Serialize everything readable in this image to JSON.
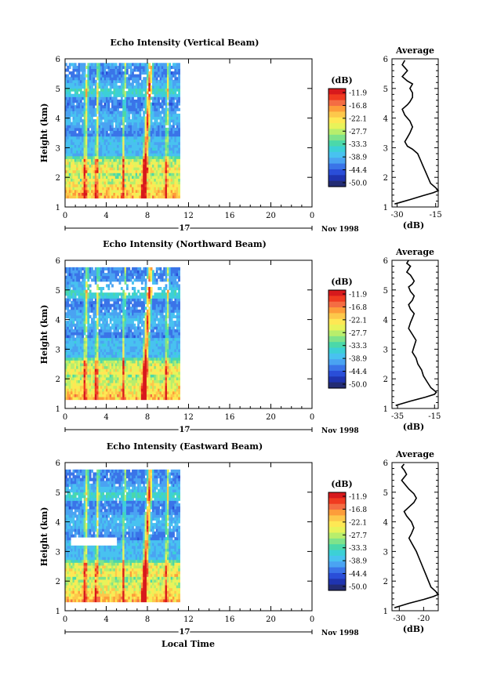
{
  "figure": {
    "xlabel": "Local Time",
    "date_label": "Nov 1998",
    "day_label": "17",
    "avg_title": "Average",
    "avg_xlabel": "(dB)",
    "ylabel": "Height (km)",
    "colorbar_unit": "(dB)"
  },
  "colorbar": {
    "ticks": [
      "-11.9",
      "-16.8",
      "-22.1",
      "-27.7",
      "-33.3",
      "-38.9",
      "-44.4",
      "-50.0"
    ],
    "colors": [
      "#d7191c",
      "#f03b20",
      "#f46d43",
      "#fd9d3a",
      "#fdc84b",
      "#fee854",
      "#e8f35a",
      "#b8ee6c",
      "#7fe38a",
      "#4bd8a9",
      "#3cd0d6",
      "#48c2f0",
      "#4aa3f2",
      "#3a74e8",
      "#2a4ed8",
      "#1f34b0",
      "#232c74"
    ]
  },
  "chart_data": [
    {
      "type": "heatmap",
      "title": "Echo Intensity (Vertical Beam)",
      "xlabel": "",
      "ylabel": "Height (km)",
      "xlim": [
        0,
        24
      ],
      "ylim": [
        1,
        6
      ],
      "xticks": [
        "0",
        "4",
        "8",
        "12",
        "16",
        "20",
        "0"
      ],
      "yticks": [
        "1",
        "2",
        "3",
        "4",
        "5",
        "6"
      ],
      "data_extent_hours": [
        0,
        11
      ],
      "note_values": "Echo intensity in dB; strongest returns (about -12 dB) below 2.5 km and in vertical streaks near 2 h and 7.5 h"
    },
    {
      "type": "heatmap",
      "title": "Echo Intensity (Northward Beam)",
      "xlabel": "",
      "ylabel": "Height (km)",
      "xlim": [
        0,
        24
      ],
      "ylim": [
        1,
        6
      ],
      "xticks": [
        "0",
        "4",
        "8",
        "12",
        "16",
        "20",
        "0"
      ],
      "yticks": [
        "1",
        "2",
        "3",
        "4",
        "5",
        "6"
      ],
      "data_extent_hours": [
        0,
        11
      ]
    },
    {
      "type": "heatmap",
      "title": "Echo Intensity (Eastward Beam)",
      "xlabel": "Local Time",
      "ylabel": "Height (km)",
      "xlim": [
        0,
        24
      ],
      "ylim": [
        1,
        6
      ],
      "xticks": [
        "0",
        "4",
        "8",
        "12",
        "16",
        "20",
        "0"
      ],
      "yticks": [
        "1",
        "2",
        "3",
        "4",
        "5",
        "6"
      ],
      "data_extent_hours": [
        0,
        11
      ]
    },
    {
      "type": "line",
      "title": "Average",
      "xlabel": "(dB)",
      "ylabel": "",
      "xlim": [
        -32,
        -14
      ],
      "ylim": [
        1,
        6
      ],
      "xticks": [
        "-30",
        "-15"
      ],
      "yticks": [
        "1",
        "2",
        "3",
        "4",
        "5",
        "6"
      ],
      "series": [
        {
          "x": [
            -31,
            -25,
            -20,
            -16,
            -14,
            -15,
            -17,
            -18,
            -19,
            -20,
            -21,
            -22,
            -24,
            -26,
            -27,
            -26,
            -25,
            -24,
            -25,
            -27,
            -28,
            -26,
            -25,
            -24,
            -24,
            -25,
            -24,
            -26,
            -28,
            -27,
            -26,
            -27,
            -28,
            -27
          ],
          "y": [
            1.1,
            1.25,
            1.38,
            1.48,
            1.55,
            1.65,
            1.8,
            2.0,
            2.2,
            2.4,
            2.6,
            2.8,
            2.95,
            3.05,
            3.2,
            3.35,
            3.5,
            3.7,
            3.9,
            4.1,
            4.3,
            4.45,
            4.55,
            4.7,
            4.85,
            5.0,
            5.15,
            5.25,
            5.4,
            5.5,
            5.6,
            5.7,
            5.8,
            5.95
          ]
        }
      ]
    },
    {
      "type": "line",
      "title": "Average",
      "xlabel": "(dB)",
      "ylabel": "",
      "xlim": [
        -38,
        -13
      ],
      "ylim": [
        1,
        6
      ],
      "xticks": [
        "-35",
        "-15"
      ],
      "yticks": [
        "1",
        "2",
        "3",
        "4",
        "5",
        "6"
      ],
      "series": [
        {
          "x": [
            -36,
            -28,
            -20,
            -15,
            -14,
            -17,
            -19,
            -21,
            -22,
            -24,
            -25,
            -27,
            -26,
            -25,
            -27,
            -29,
            -28,
            -27,
            -26,
            -28,
            -29,
            -27,
            -26,
            -28,
            -29,
            -27,
            -26,
            -27,
            -28,
            -30,
            -29,
            -28,
            -30,
            -29
          ],
          "y": [
            1.1,
            1.25,
            1.38,
            1.48,
            1.55,
            1.7,
            1.9,
            2.1,
            2.3,
            2.5,
            2.7,
            2.9,
            3.1,
            3.3,
            3.5,
            3.7,
            3.9,
            4.05,
            4.2,
            4.35,
            4.5,
            4.65,
            4.8,
            4.95,
            5.1,
            5.2,
            5.3,
            5.4,
            5.5,
            5.6,
            5.7,
            5.8,
            5.9,
            6.0
          ]
        }
      ]
    },
    {
      "type": "line",
      "title": "Average",
      "xlabel": "(dB)",
      "ylabel": "",
      "xlim": [
        -33,
        -14
      ],
      "ylim": [
        1,
        6
      ],
      "xticks": [
        "-30",
        "-20"
      ],
      "yticks": [
        "1",
        "2",
        "3",
        "4",
        "5",
        "6"
      ],
      "series": [
        {
          "x": [
            -32,
            -26,
            -20,
            -16,
            -14,
            -15,
            -17,
            -18,
            -19,
            -20,
            -21,
            -22,
            -23,
            -24,
            -25,
            -26,
            -25,
            -24,
            -25,
            -27,
            -28,
            -26,
            -24,
            -23,
            -24,
            -26,
            -27,
            -28,
            -29,
            -28,
            -27,
            -28,
            -29,
            -28
          ],
          "y": [
            1.1,
            1.25,
            1.38,
            1.48,
            1.55,
            1.65,
            1.8,
            2.0,
            2.2,
            2.4,
            2.6,
            2.8,
            3.0,
            3.15,
            3.3,
            3.45,
            3.6,
            3.8,
            4.0,
            4.2,
            4.35,
            4.5,
            4.65,
            4.8,
            4.95,
            5.1,
            5.2,
            5.3,
            5.4,
            5.5,
            5.6,
            5.75,
            5.85,
            5.95
          ]
        }
      ]
    }
  ]
}
